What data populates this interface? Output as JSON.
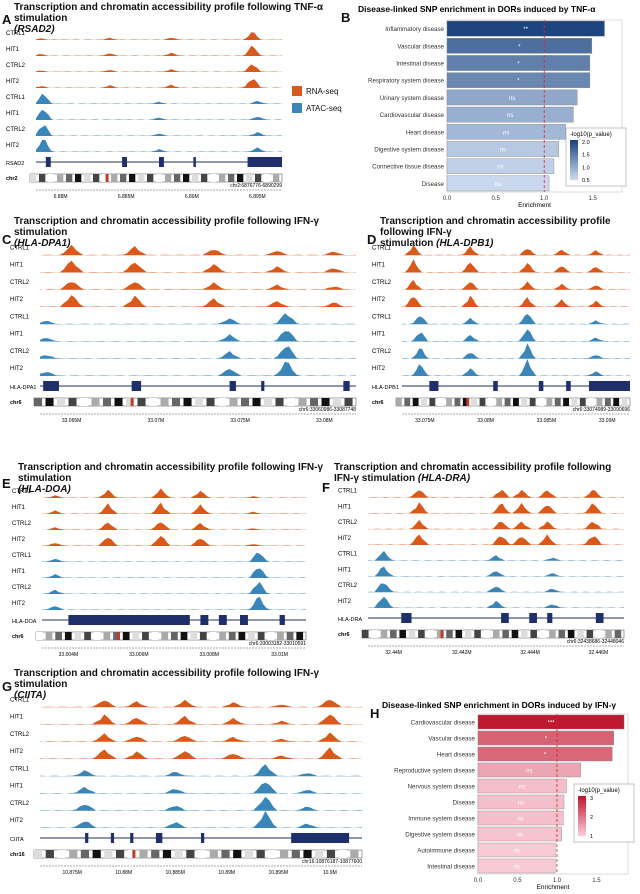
{
  "colors": {
    "rna": "#d9581a",
    "atac": "#3a86b8"
  },
  "legend": {
    "rna": "RNA-seq",
    "atac": "ATAC-seq"
  },
  "panels": {
    "A": {
      "letter": "A",
      "title_prefix": "Transcription and chromatin accessibility profile following TNF-α stimulation",
      "gene": "RSAD2",
      "title_gene_text": "(RSAD2)",
      "chrom": "chr2",
      "coord_label": "chr2:6876776-6890299",
      "ticks": [
        "6.88M",
        "6.885M",
        "6.89M",
        "6.895M"
      ],
      "tracks": [
        "CTRL1",
        "HIT1",
        "CTRL2",
        "HIT2",
        "CTRL1",
        "HIT1",
        "CTRL2",
        "HIT2"
      ]
    },
    "C": {
      "letter": "C",
      "title_prefix": "Transcription and chromatin accessibility profile following IFN-γ stimulation",
      "gene": "HLA-DPA1",
      "title_gene_text": "(HLA-DPA1)",
      "chrom": "chr6",
      "coord_label": "chr6:33060986-33087748",
      "ticks": [
        "33.065M",
        "33.07M",
        "33.075M",
        "33.08M"
      ],
      "tracks": [
        "CTRL1",
        "HIT1",
        "CTRL2",
        "HIT2",
        "CTRL1",
        "HIT1",
        "CTRL2",
        "HIT2"
      ]
    },
    "D": {
      "letter": "D",
      "title_line1": "Transcription and chromatin accessibility profile following IFN-γ",
      "title_line2_prefix": "stimulation",
      "gene": "HLA-DPB1",
      "title_gene_text": "(HLA-DPB1)",
      "chrom": "chr6",
      "coord_label": "chr6:33074989-33090696",
      "ticks": [
        "33.075M",
        "33.08M",
        "33.085M",
        "33.09M"
      ],
      "tracks": [
        "CTRL1",
        "HIT1",
        "CTRL2",
        "HIT2",
        "CTRL1",
        "HIT1",
        "CTRL2",
        "HIT2"
      ]
    },
    "E": {
      "letter": "E",
      "title_prefix": "Transcription and chromatin accessibility profile following IFN-γ stimulation",
      "gene": "HLA-DOA",
      "title_gene_text": "(HLA-DOA)",
      "chrom": "chr6",
      "coord_label": "chr6:33003182-33010591",
      "ticks": [
        "33.004M",
        "33.006M",
        "33.008M",
        "33.01M"
      ],
      "tracks": [
        "CTRL1",
        "HIT1",
        "CTRL2",
        "HIT2",
        "CTRL1",
        "HIT1",
        "CTRL2",
        "HIT2"
      ]
    },
    "F": {
      "letter": "F",
      "title_line1": "Transcription and chromatin accessibility profile following",
      "title_line2_prefix": "IFN-γ stimulation",
      "gene": "HLA-DRA",
      "title_gene_text": "(HLA-DRA)",
      "chrom": "chr6",
      "coord_label": "chr6:32438686-32448046",
      "ticks": [
        "32.44M",
        "32.442M",
        "32.444M",
        "32.446M"
      ],
      "tracks": [
        "CTRL1",
        "HIT1",
        "CTRL2",
        "HIT2",
        "CTRL1",
        "HIT1",
        "CTRL2",
        "HIT2"
      ]
    },
    "G": {
      "letter": "G",
      "title_line1": "Transcription and chromatin accessibility profile following IFN-γ stimulation",
      "gene": "CIITA",
      "title_gene_text": "(CIITA)",
      "chrom": "chr16",
      "coord_label": "chr16:10876187-10877600",
      "ticks": [
        "10.875M",
        "10.88M",
        "10.885M",
        "10.89M",
        "10.895M",
        "10.9M"
      ],
      "tracks": [
        "CTRL1",
        "HIT1",
        "CTRL2",
        "HIT2",
        "CTRL1",
        "HIT1",
        "CTRL2",
        "HIT2"
      ]
    }
  },
  "chart_data": [
    {
      "panel": "B",
      "type": "bar",
      "title": "Disease-linked SNP enrichment in DORs induced by TNF-α",
      "xlabel": "Enrichment",
      "xlim": [
        0,
        1.8
      ],
      "xticks": [
        "0.0",
        "0.5",
        "1.0",
        "1.5"
      ],
      "reference_line": 1.0,
      "categories": [
        "Inflammatory disease",
        "Vascular disease",
        "Intestinal disease",
        "Respiratory system disease",
        "Urinary system disease",
        "Cardiovascular disease",
        "Heart disease",
        "Digestive system disease",
        "Connective tissue disease",
        "Disease"
      ],
      "values": [
        1.62,
        1.49,
        1.47,
        1.47,
        1.34,
        1.3,
        1.22,
        1.15,
        1.1,
        1.05
      ],
      "significance": [
        "**",
        "*",
        "*",
        "*",
        "ns",
        "ns",
        "ns",
        "ns",
        "ns",
        "ns"
      ],
      "legend_title": "-log10(p_value)",
      "legend_ticks": [
        "2.0",
        "1.5",
        "1.0",
        "0.5"
      ],
      "colorscale": [
        "#c9d8ee",
        "#1d4681"
      ],
      "neglog10p": [
        2.3,
        1.8,
        1.6,
        1.5,
        1.1,
        1.0,
        0.9,
        0.7,
        0.6,
        0.5
      ]
    },
    {
      "panel": "H",
      "type": "bar",
      "title": "Disease-linked SNP enrichment in DORs induced by IFN-γ",
      "xlabel": "Enrichment",
      "xlim": [
        0,
        1.9
      ],
      "xticks": [
        "0.0",
        "0.5",
        "1.0",
        "1.5"
      ],
      "reference_line": 1.0,
      "categories": [
        "Cardiovascular disease",
        "Vascular disease",
        "Heart disease",
        "Reproductive system disease",
        "Nervous system disease",
        "Disease",
        "Immune system disease",
        "Digestive system disease",
        "Autoimmune disease",
        "Intestinal disease"
      ],
      "values": [
        1.85,
        1.72,
        1.7,
        1.3,
        1.12,
        1.09,
        1.08,
        1.06,
        0.98,
        0.98
      ],
      "significance": [
        "***",
        "*",
        "*",
        "ns",
        "ns",
        "ns",
        "ns",
        "ns",
        "ns",
        "ns"
      ],
      "legend_title": "-log10(p_value)",
      "legend_ticks": [
        "3",
        "2",
        "1"
      ],
      "colorscale": [
        "#f8cad6",
        "#c0182e"
      ],
      "neglog10p": [
        3.2,
        2.0,
        1.9,
        0.9,
        0.5,
        0.5,
        0.5,
        0.4,
        0.3,
        0.3
      ]
    }
  ]
}
